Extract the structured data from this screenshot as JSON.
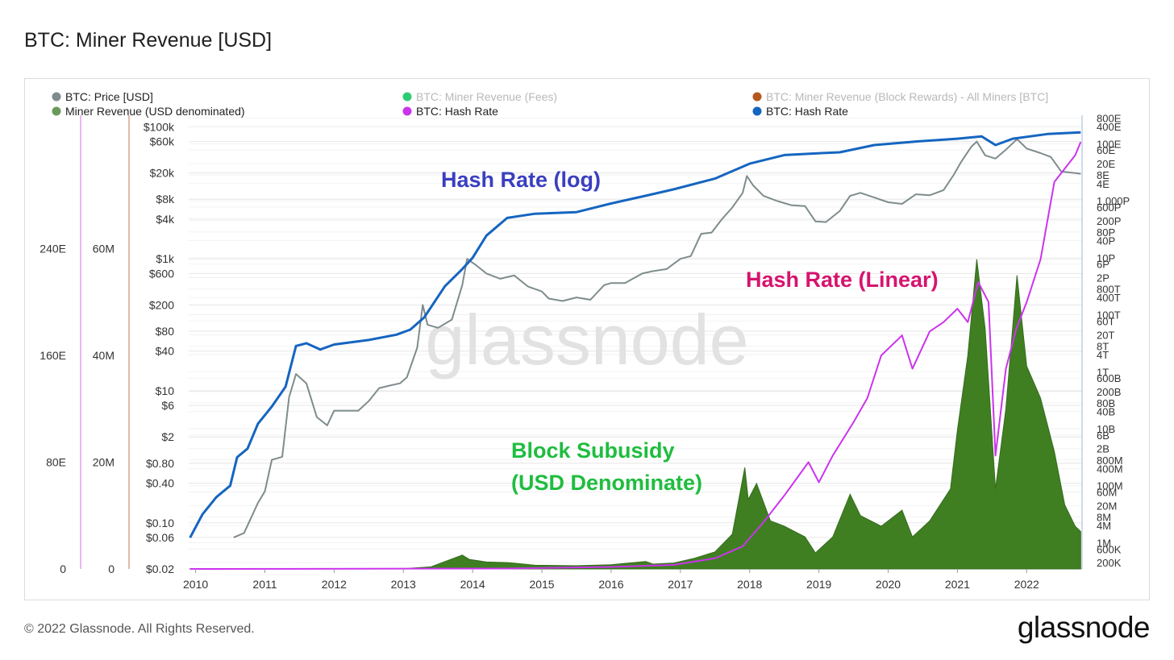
{
  "page": {
    "title": "BTC: Miner Revenue [USD]",
    "footer": "© 2022 Glassnode. All Rights Reserved.",
    "logo": "glassnode",
    "watermark": "glassnode"
  },
  "legend": [
    {
      "label": "BTC: Price [USD]",
      "color": "#7f8c8d",
      "active": true
    },
    {
      "label": "BTC: Miner Revenue (Fees)",
      "color": "#2ecc71",
      "active": false
    },
    {
      "label": "BTC: Miner Revenue (Block Rewards) - All Miners [BTC]",
      "color": "#b5561c",
      "active": false
    },
    {
      "label": "Miner Revenue (USD denominated)",
      "color": "#6a9a5a",
      "active": true
    },
    {
      "label": "BTC: Hash Rate",
      "color": "#cc33ee",
      "active": true
    },
    {
      "label": "BTC: Hash Rate",
      "color": "#1565c0",
      "active": true
    }
  ],
  "annotations": {
    "hash_log": "Hash Rate (log)",
    "hash_linear": "Hash Rate (Linear)",
    "subsidy_line1": "Block Subusidy",
    "subsidy_line2": "(USD Denominate)"
  },
  "chart_data": {
    "type": "line",
    "x_ticks": [
      "2010",
      "2011",
      "2012",
      "2013",
      "2014",
      "2015",
      "2016",
      "2017",
      "2018",
      "2019",
      "2020",
      "2021",
      "2022"
    ],
    "xlim": [
      2009.9,
      2022.8
    ],
    "axes": {
      "hashrate_linear_left": {
        "ticks": [
          "0",
          "80E",
          "160E",
          "240E"
        ],
        "values": [
          0,
          8e+19,
          1.6e+20,
          2.4e+20
        ]
      },
      "revenue_left": {
        "ticks": [
          "0",
          "20M",
          "40M",
          "60M"
        ],
        "values": [
          0,
          20000000.0,
          40000000.0,
          60000000.0
        ]
      },
      "price_log": {
        "ticks": [
          "$0.02",
          "$0.06",
          "$0.10",
          "$0.40",
          "$0.80",
          "$2",
          "$6",
          "$10",
          "$40",
          "$80",
          "$200",
          "$600",
          "$1k",
          "$4k",
          "$8k",
          "$20k",
          "$60k",
          "$100k"
        ],
        "values": [
          0.02,
          0.06,
          0.1,
          0.4,
          0.8,
          2,
          6,
          10,
          40,
          80,
          200,
          600,
          1000,
          4000,
          8000,
          20000,
          60000,
          100000
        ]
      },
      "hashrate_log_right": {
        "ticks": [
          "200K",
          "600K",
          "1M",
          "4M",
          "8M",
          "20M",
          "60M",
          "100M",
          "400M",
          "800M",
          "2B",
          "6B",
          "10B",
          "40B",
          "80B",
          "200B",
          "600B",
          "1T",
          "4T",
          "8T",
          "20T",
          "60T",
          "100T",
          "400T",
          "800T",
          "2P",
          "6P",
          "10P",
          "40P",
          "80P",
          "200P",
          "600P",
          "1,000P",
          "4E",
          "8E",
          "20E",
          "60E",
          "100E",
          "400E",
          "800E"
        ],
        "values": [
          200000.0,
          600000.0,
          1000000.0,
          4000000.0,
          8000000.0,
          20000000.0,
          60000000.0,
          100000000.0,
          400000000.0,
          800000000.0,
          2000000000.0,
          6000000000.0,
          10000000000.0,
          40000000000.0,
          80000000000.0,
          200000000000.0,
          600000000000.0,
          1000000000000.0,
          4000000000000.0,
          8000000000000.0,
          20000000000000.0,
          60000000000000.0,
          100000000000000.0,
          400000000000000.0,
          800000000000000.0,
          2000000000000000.0,
          6000000000000000.0,
          1e+16,
          4e+16,
          8e+16,
          2e+17,
          6e+17,
          1e+18,
          4e+18,
          8e+18,
          2e+19,
          6e+19,
          1e+20,
          4e+20,
          8e+20
        ]
      }
    },
    "series": [
      {
        "name": "BTC: Price [USD]",
        "axis": "price_log",
        "color": "#7f8c8d",
        "x": [
          2010.55,
          2010.7,
          2010.9,
          2011.0,
          2011.1,
          2011.25,
          2011.35,
          2011.45,
          2011.6,
          2011.75,
          2011.9,
          2012.0,
          2012.15,
          2012.35,
          2012.5,
          2012.65,
          2012.8,
          2012.95,
          2013.05,
          2013.2,
          2013.28,
          2013.35,
          2013.5,
          2013.7,
          2013.85,
          2013.92,
          2014.05,
          2014.2,
          2014.4,
          2014.6,
          2014.8,
          2015.0,
          2015.1,
          2015.3,
          2015.5,
          2015.7,
          2015.9,
          2016.0,
          2016.2,
          2016.45,
          2016.6,
          2016.8,
          2017.0,
          2017.15,
          2017.3,
          2017.45,
          2017.6,
          2017.75,
          2017.9,
          2017.96,
          2018.05,
          2018.2,
          2018.4,
          2018.6,
          2018.8,
          2018.95,
          2019.1,
          2019.3,
          2019.45,
          2019.6,
          2019.8,
          2020.0,
          2020.2,
          2020.4,
          2020.6,
          2020.8,
          2020.95,
          2021.05,
          2021.2,
          2021.28,
          2021.4,
          2021.55,
          2021.7,
          2021.86,
          2022.0,
          2022.2,
          2022.35,
          2022.5,
          2022.7,
          2022.78
        ],
        "y": [
          0.06,
          0.07,
          0.2,
          0.3,
          0.9,
          1,
          8,
          18,
          13,
          4,
          3,
          5,
          5,
          5,
          7,
          11,
          12,
          13,
          16,
          45,
          200,
          100,
          90,
          120,
          400,
          1000,
          800,
          600,
          500,
          560,
          380,
          320,
          250,
          230,
          260,
          240,
          400,
          430,
          430,
          600,
          650,
          700,
          1000,
          1100,
          2400,
          2500,
          4000,
          6000,
          10000,
          18000,
          13000,
          9000,
          7500,
          6500,
          6300,
          3700,
          3600,
          5300,
          9000,
          10000,
          8500,
          7200,
          6800,
          9500,
          9200,
          11000,
          19000,
          29000,
          50000,
          60000,
          37000,
          33000,
          45000,
          65000,
          47000,
          40000,
          35000,
          21000,
          20000,
          19500
        ]
      },
      {
        "name": "BTC: Hash Rate",
        "axis": "hashrate_log_right",
        "color": "#1565c0",
        "x": [
          2009.92,
          2010.1,
          2010.3,
          2010.5,
          2010.6,
          2010.75,
          2010.9,
          2011.1,
          2011.3,
          2011.45,
          2011.6,
          2011.8,
          2012.0,
          2012.5,
          2012.9,
          2013.1,
          2013.3,
          2013.6,
          2013.85,
          2014.0,
          2014.2,
          2014.5,
          2014.9,
          2015.5,
          2016.0,
          2016.5,
          2016.9,
          2017.5,
          2018.0,
          2018.5,
          2018.9,
          2019.3,
          2019.8,
          2020.4,
          2021.0,
          2021.35,
          2021.55,
          2021.8,
          2022.3,
          2022.78
        ],
        "y": [
          1500000.0,
          10000000.0,
          40000000.0,
          100000000.0,
          1000000000.0,
          2000000000.0,
          15000000000.0,
          60000000000.0,
          300000000000.0,
          8000000000000.0,
          10000000000000.0,
          6000000000000.0,
          9000000000000.0,
          13000000000000.0,
          20000000000000.0,
          30000000000000.0,
          80000000000000.0,
          1000000000000000.0,
          4000000000000000.0,
          1e+16,
          6e+16,
          2.5e+17,
          3.5e+17,
          4e+17,
          8e+17,
          1.5e+18,
          2.5e+18,
          6e+18,
          2e+19,
          4e+19,
          4.5e+19,
          5e+19,
          9e+19,
          1.2e+20,
          1.5e+20,
          1.8e+20,
          9e+19,
          1.5e+20,
          2.2e+20,
          2.5e+20
        ]
      },
      {
        "name": "BTC: Hash Rate",
        "axis": "hashrate_linear_left",
        "color": "#cc33ee",
        "x": [
          2009.92,
          2014.5,
          2016.0,
          2016.9,
          2017.5,
          2017.9,
          2018.2,
          2018.5,
          2018.85,
          2019.0,
          2019.2,
          2019.5,
          2019.7,
          2019.9,
          2020.2,
          2020.35,
          2020.6,
          2020.8,
          2021.0,
          2021.15,
          2021.3,
          2021.45,
          2021.55,
          2021.7,
          2021.85,
          2022.0,
          2022.2,
          2022.4,
          2022.55,
          2022.7,
          2022.78
        ],
        "y": [
          0,
          3e+17,
          1.5e+18,
          3e+18,
          8e+18,
          1.7e+19,
          3.5e+19,
          5.5e+19,
          8e+19,
          6.5e+19,
          8.5e+19,
          1.1e+20,
          1.28e+20,
          1.6e+20,
          1.75e+20,
          1.5e+20,
          1.78e+20,
          1.85e+20,
          1.95e+20,
          1.85e+20,
          2.15e+20,
          2e+20,
          8.5e+19,
          1.5e+20,
          1.8e+20,
          2e+20,
          2.32e+20,
          2.9e+20,
          3e+20,
          3.1e+20,
          3.2e+20
        ]
      },
      {
        "name": "Miner Revenue (USD denominated)",
        "axis": "revenue_left",
        "color": "#3f7f22",
        "x": [
          2009.92,
          2013.0,
          2013.4,
          2013.85,
          2013.95,
          2014.2,
          2014.5,
          2014.9,
          2015.5,
          2016.0,
          2016.5,
          2016.6,
          2016.9,
          2017.2,
          2017.5,
          2017.75,
          2017.93,
          2017.98,
          2018.1,
          2018.3,
          2018.5,
          2018.8,
          2018.95,
          2019.2,
          2019.45,
          2019.6,
          2019.9,
          2020.2,
          2020.35,
          2020.6,
          2020.9,
          2021.0,
          2021.15,
          2021.28,
          2021.4,
          2021.55,
          2021.7,
          2021.86,
          2022.0,
          2022.2,
          2022.4,
          2022.55,
          2022.7,
          2022.78
        ],
        "y": [
          0,
          50000.0,
          400000.0,
          2600000.0,
          1800000.0,
          1300000.0,
          1200000.0,
          700000.0,
          600000.0,
          800000.0,
          1400000.0,
          900000.0,
          1100000.0,
          2000000.0,
          3200000.0,
          6500000.0,
          19000000.0,
          13000000.0,
          16000000.0,
          9000000.0,
          8000000.0,
          6000000.0,
          3000000.0,
          6000000.0,
          14000000.0,
          10000000.0,
          8000000.0,
          11000000.0,
          6000000.0,
          9000000.0,
          15000000.0,
          26000000.0,
          40000000.0,
          58000000.0,
          45000000.0,
          15000000.0,
          30000000.0,
          55000000.0,
          38000000.0,
          32000000.0,
          22000000.0,
          12000000.0,
          8000000.0,
          7000000.0
        ]
      }
    ]
  }
}
